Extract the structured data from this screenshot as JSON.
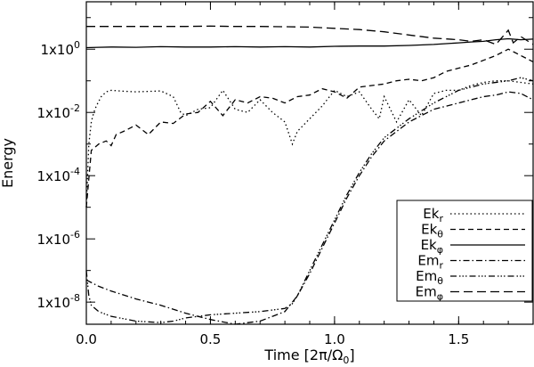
{
  "chart_data": {
    "type": "line",
    "title": "",
    "xlabel": "Time [2π/Ω",
    "xlabel_sub": "0",
    "xlabel_close": "]",
    "ylabel": "Energy",
    "xlim": [
      0,
      1.8
    ],
    "ylim_log10": [
      -8.7,
      1.5
    ],
    "x_ticks": [
      {
        "value": 0.0,
        "label": "0.0"
      },
      {
        "value": 0.5,
        "label": "0.5"
      },
      {
        "value": 1.0,
        "label": "1.0"
      },
      {
        "value": 1.5,
        "label": "1.5"
      }
    ],
    "y_ticks": [
      {
        "exp": 0,
        "base": "1x10",
        "sup": "0"
      },
      {
        "exp": -2,
        "base": "1x10",
        "sup": "-2"
      },
      {
        "exp": -4,
        "base": "1x10",
        "sup": "-4"
      },
      {
        "exp": -6,
        "base": "1x10",
        "sup": "-6"
      },
      {
        "exp": -8,
        "base": "1x10",
        "sup": "-8"
      }
    ],
    "legend_position": "bottom-right",
    "series": [
      {
        "name": "Ek",
        "sub": "r",
        "dash": "1.5,3",
        "x": [
          0,
          0.01,
          0.02,
          0.03,
          0.04,
          0.06,
          0.08,
          0.1,
          0.15,
          0.2,
          0.3,
          0.35,
          0.38,
          0.4,
          0.45,
          0.5,
          0.55,
          0.6,
          0.65,
          0.7,
          0.75,
          0.8,
          0.83,
          0.85,
          0.9,
          0.95,
          1.0,
          1.05,
          1.1,
          1.15,
          1.18,
          1.2,
          1.25,
          1.3,
          1.35,
          1.4,
          1.45,
          1.5,
          1.55,
          1.6,
          1.65,
          1.7,
          1.75,
          1.8
        ],
        "log10y": [
          -5.0,
          -3.0,
          -2.3,
          -2.0,
          -1.8,
          -1.5,
          -1.35,
          -1.3,
          -1.33,
          -1.35,
          -1.32,
          -1.5,
          -2.0,
          -2.1,
          -1.9,
          -1.85,
          -1.3,
          -1.9,
          -2.0,
          -1.6,
          -2.0,
          -2.3,
          -3.0,
          -2.6,
          -2.2,
          -1.8,
          -1.3,
          -1.5,
          -1.35,
          -1.9,
          -2.2,
          -1.5,
          -2.3,
          -1.6,
          -2.1,
          -1.4,
          -1.3,
          -1.3,
          -1.15,
          -1.05,
          -1.0,
          -1.0,
          -1.05,
          -1.1
        ]
      },
      {
        "name": "Ek",
        "sub": "θ",
        "dash": "6,4",
        "x": [
          0,
          0.02,
          0.05,
          0.08,
          0.1,
          0.12,
          0.15,
          0.2,
          0.25,
          0.3,
          0.35,
          0.4,
          0.45,
          0.5,
          0.55,
          0.6,
          0.65,
          0.7,
          0.75,
          0.8,
          0.85,
          0.9,
          0.95,
          1.0,
          1.05,
          1.1,
          1.15,
          1.2,
          1.25,
          1.3,
          1.35,
          1.4,
          1.45,
          1.5,
          1.55,
          1.6,
          1.65,
          1.7,
          1.75,
          1.8
        ],
        "log10y": [
          -5.0,
          -3.2,
          -3.0,
          -2.9,
          -3.05,
          -2.7,
          -2.6,
          -2.4,
          -2.7,
          -2.3,
          -2.35,
          -2.05,
          -2.0,
          -1.65,
          -2.1,
          -1.6,
          -1.7,
          -1.5,
          -1.55,
          -1.7,
          -1.5,
          -1.45,
          -1.25,
          -1.35,
          -1.55,
          -1.2,
          -1.15,
          -1.1,
          -1.0,
          -0.95,
          -1.0,
          -0.9,
          -0.7,
          -0.6,
          -0.5,
          -0.35,
          -0.2,
          0.0,
          -0.2,
          -0.4
        ]
      },
      {
        "name": "Ek",
        "sub": "φ",
        "dash": "none",
        "x": [
          0,
          0.05,
          0.1,
          0.2,
          0.3,
          0.4,
          0.5,
          0.6,
          0.7,
          0.8,
          0.9,
          1.0,
          1.1,
          1.2,
          1.3,
          1.4,
          1.5,
          1.55,
          1.6,
          1.65,
          1.7,
          1.75,
          1.8
        ],
        "log10y": [
          0.05,
          0.06,
          0.07,
          0.06,
          0.08,
          0.07,
          0.07,
          0.08,
          0.07,
          0.08,
          0.07,
          0.09,
          0.1,
          0.1,
          0.12,
          0.15,
          0.2,
          0.23,
          0.25,
          0.3,
          0.33,
          0.3,
          0.32
        ]
      },
      {
        "name": "Em",
        "sub": "r",
        "dash": "7,3,1.5,3",
        "x": [
          0,
          0.05,
          0.1,
          0.2,
          0.3,
          0.4,
          0.5,
          0.6,
          0.7,
          0.8,
          0.85,
          0.9,
          0.95,
          1.0,
          1.05,
          1.1,
          1.15,
          1.2,
          1.3,
          1.4,
          1.5,
          1.55,
          1.6,
          1.65,
          1.7,
          1.75,
          1.8
        ],
        "log10y": [
          -7.3,
          -7.5,
          -7.65,
          -7.9,
          -8.1,
          -8.35,
          -8.55,
          -8.7,
          -8.6,
          -8.3,
          -7.8,
          -7.1,
          -6.3,
          -5.5,
          -4.7,
          -4.0,
          -3.4,
          -2.9,
          -2.3,
          -1.9,
          -1.7,
          -1.6,
          -1.5,
          -1.45,
          -1.35,
          -1.4,
          -1.6
        ]
      },
      {
        "name": "Em",
        "sub": "θ",
        "dash": "7,3,1.5,2,1.5,2,1.5,3",
        "x": [
          0,
          0.01,
          0.02,
          0.05,
          0.1,
          0.2,
          0.3,
          0.35,
          0.4,
          0.5,
          0.6,
          0.7,
          0.8,
          0.83,
          0.85,
          0.9,
          0.95,
          1.0,
          1.05,
          1.1,
          1.15,
          1.2,
          1.3,
          1.4,
          1.5,
          1.6,
          1.7,
          1.75,
          1.8
        ],
        "log10y": [
          -7.0,
          -7.8,
          -8.1,
          -8.3,
          -8.45,
          -8.6,
          -8.65,
          -8.6,
          -8.5,
          -8.4,
          -8.35,
          -8.3,
          -8.2,
          -8.05,
          -7.8,
          -7.0,
          -6.2,
          -5.4,
          -4.6,
          -3.9,
          -3.3,
          -2.8,
          -2.2,
          -1.7,
          -1.3,
          -1.1,
          -1.0,
          -0.9,
          -1.0
        ]
      },
      {
        "name": "Em",
        "sub": "φ",
        "dash": "10,5",
        "x": [
          0,
          0.1,
          0.2,
          0.3,
          0.4,
          0.5,
          0.6,
          0.7,
          0.8,
          0.9,
          1.0,
          1.1,
          1.2,
          1.3,
          1.4,
          1.5,
          1.55,
          1.6,
          1.65,
          1.7,
          1.72,
          1.75,
          1.8
        ],
        "log10y": [
          0.72,
          0.72,
          0.72,
          0.72,
          0.72,
          0.73,
          0.72,
          0.72,
          0.71,
          0.7,
          0.66,
          0.62,
          0.55,
          0.45,
          0.35,
          0.3,
          0.25,
          0.3,
          0.15,
          0.6,
          0.2,
          0.4,
          0.15
        ]
      }
    ]
  }
}
